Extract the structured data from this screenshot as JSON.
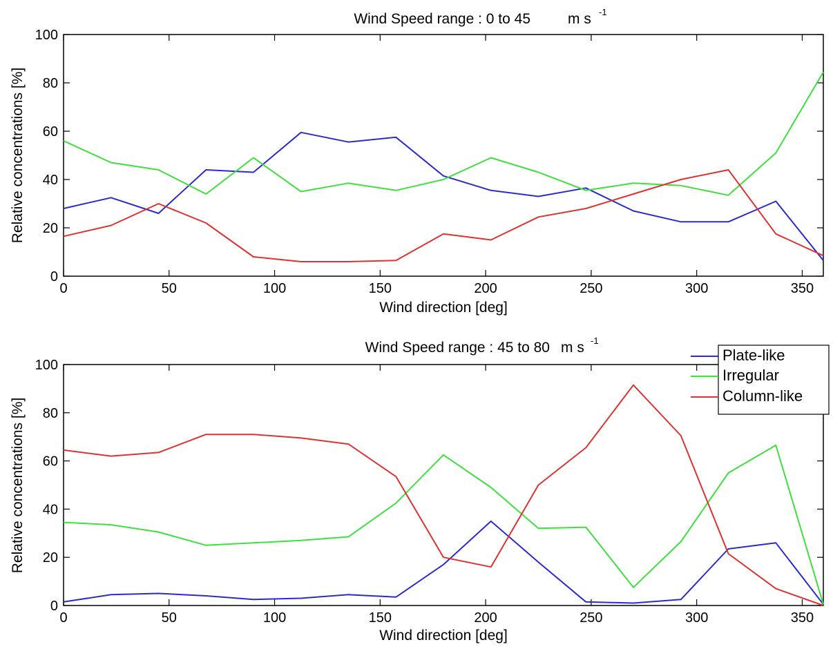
{
  "chart_data": [
    {
      "type": "line",
      "title": "Wind Speed range : 0 to 45",
      "title_unit": "m s",
      "title_unit_exponent": "-1",
      "xlabel": "Wind direction [deg]",
      "ylabel": "Relative concentrations [%]",
      "xlim": [
        0,
        360
      ],
      "ylim": [
        0,
        100
      ],
      "xticks": [
        0,
        50,
        100,
        150,
        200,
        250,
        300,
        350
      ],
      "yticks": [
        0,
        20,
        40,
        60,
        80,
        100
      ],
      "x": [
        0,
        22.5,
        45,
        67.5,
        90,
        112.5,
        135,
        157.5,
        180,
        202.5,
        225,
        247.5,
        270,
        292.5,
        315,
        337.5,
        360
      ],
      "series": [
        {
          "key": "plate",
          "color": "#2a2ad0",
          "values": [
            28,
            32.5,
            26,
            44,
            43,
            59.5,
            55.5,
            57.5,
            41.5,
            35.5,
            33,
            36.5,
            27,
            22.5,
            22.5,
            31,
            6.5
          ]
        },
        {
          "key": "irregular",
          "color": "#3ee03e",
          "values": [
            56,
            47,
            44,
            34,
            49,
            35,
            38.5,
            35.5,
            40,
            49,
            43,
            35.5,
            38.5,
            37.5,
            33.5,
            51,
            84.5
          ]
        },
        {
          "key": "column",
          "color": "#e03030",
          "values": [
            16.5,
            21,
            30,
            22,
            8,
            6,
            6,
            6.5,
            17.5,
            15,
            24.5,
            28,
            34,
            40,
            44,
            17.5,
            8.5
          ]
        }
      ]
    },
    {
      "type": "line",
      "title": "Wind Speed range : 45 to 80",
      "title_unit": "m s",
      "title_unit_exponent": "-1",
      "xlabel": "Wind direction [deg]",
      "ylabel": "Relative concentrations [%]",
      "xlim": [
        0,
        360
      ],
      "ylim": [
        0,
        100
      ],
      "xticks": [
        0,
        50,
        100,
        150,
        200,
        250,
        300,
        350
      ],
      "yticks": [
        0,
        20,
        40,
        60,
        80,
        100
      ],
      "legend_position": "top-right",
      "x": [
        0,
        22.5,
        45,
        67.5,
        90,
        112.5,
        135,
        157.5,
        180,
        202.5,
        225,
        247.5,
        270,
        292.5,
        315,
        337.5,
        360
      ],
      "series": [
        {
          "key": "plate",
          "name": "Plate-like",
          "color": "#2a2ad0",
          "values": [
            1.5,
            4.5,
            5,
            4,
            2.5,
            3,
            4.5,
            3.5,
            17,
            35,
            18,
            1.5,
            1,
            2.5,
            23.5,
            26,
            0.5
          ]
        },
        {
          "key": "irregular",
          "name": "Irregular",
          "color": "#3ee03e",
          "values": [
            34.5,
            33.5,
            30.5,
            25,
            26,
            27,
            28.5,
            42.5,
            62.5,
            49,
            32,
            32.5,
            7.5,
            26.5,
            55,
            66.5,
            0.5
          ]
        },
        {
          "key": "column",
          "name": "Column-like",
          "color": "#e03030",
          "values": [
            64.5,
            62,
            63.5,
            71,
            71,
            69.5,
            67,
            53.5,
            20,
            16,
            50,
            65.5,
            91.5,
            70.5,
            21.5,
            7,
            0
          ]
        }
      ]
    }
  ]
}
